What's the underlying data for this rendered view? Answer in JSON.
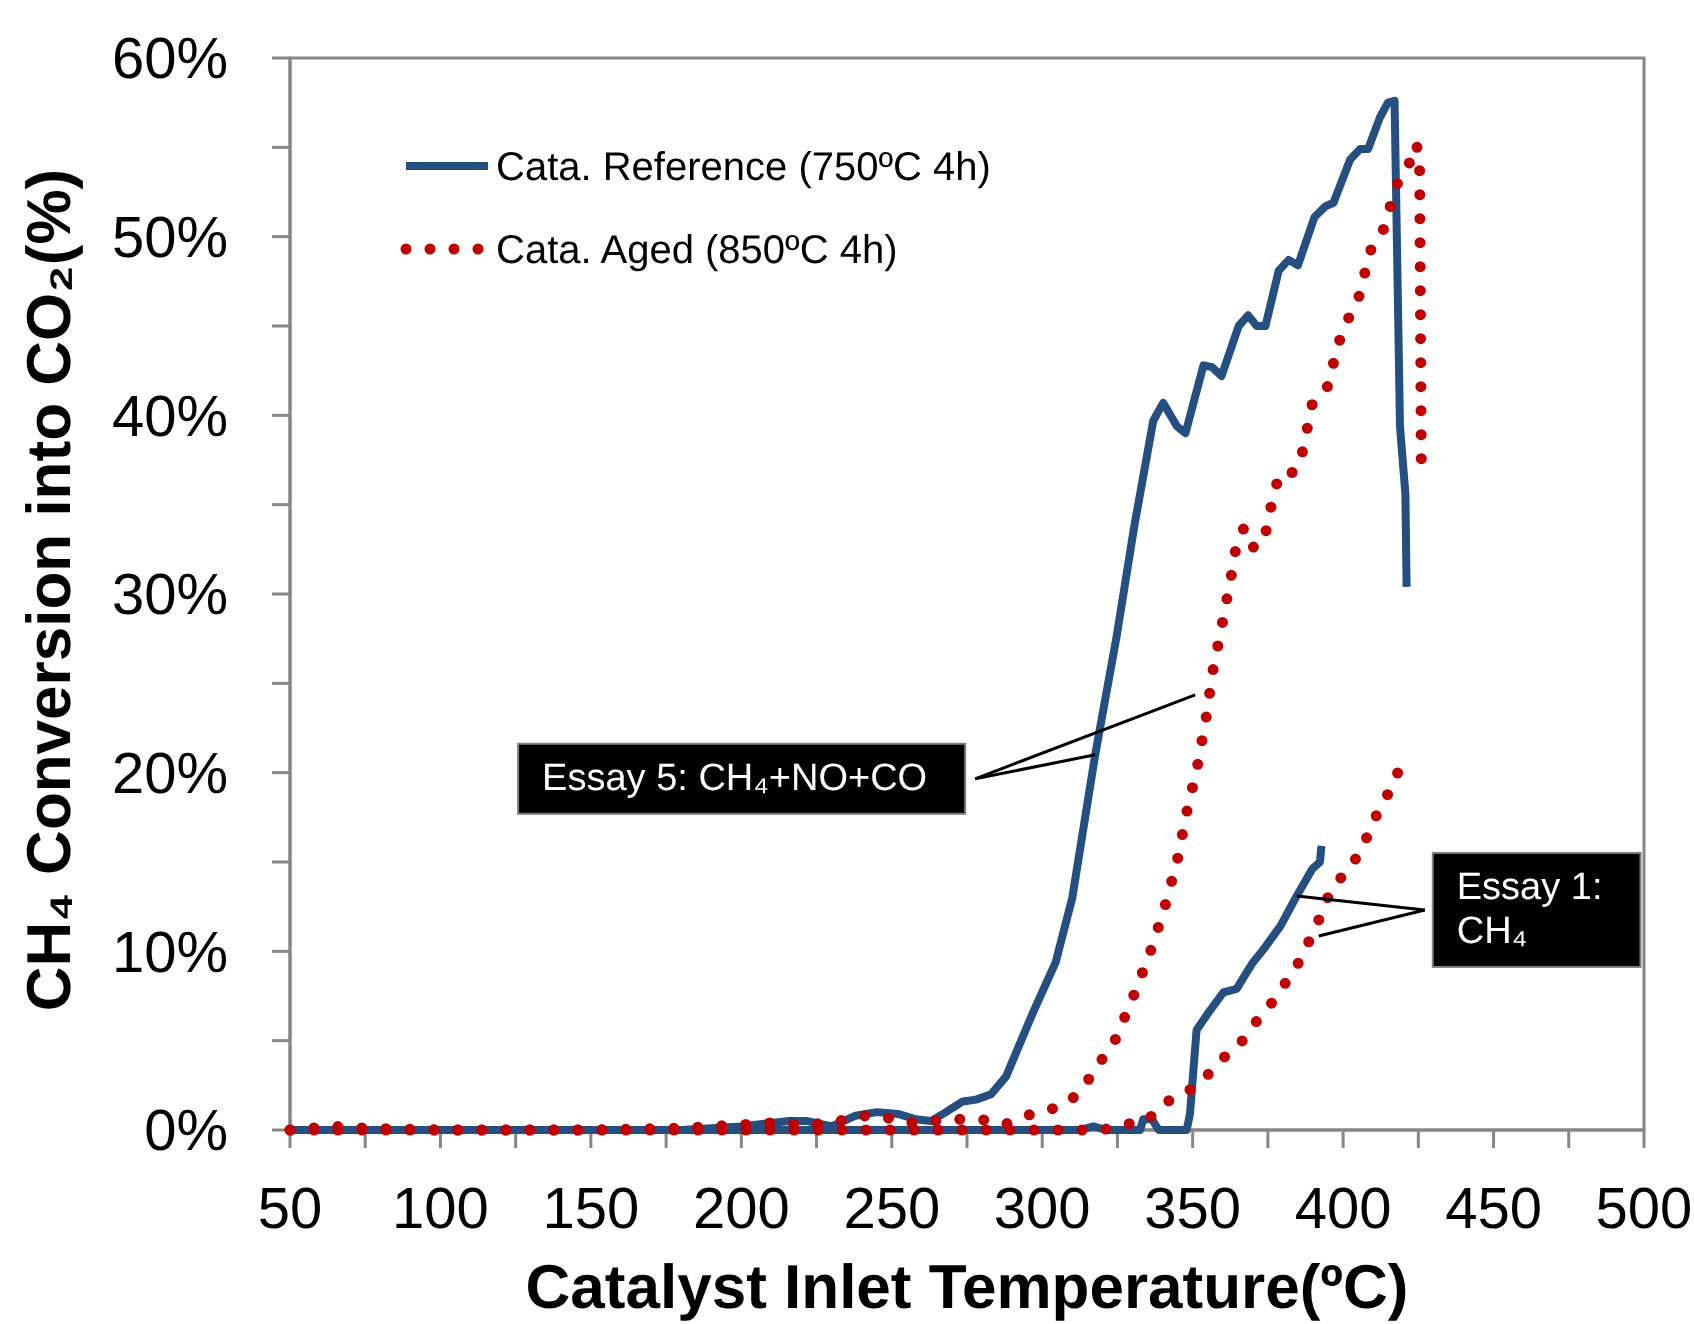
{
  "chart_data": {
    "type": "line",
    "xlabel": "Catalyst Inlet Temperature(ºC)",
    "ylabel": "CH₄ Conversion into CO₂(%)",
    "xlim": [
      50,
      500
    ],
    "xticks": [
      50,
      {
        "value": 75,
        "label": null
      },
      100,
      {
        "value": 125,
        "label": null
      },
      150,
      {
        "value": 175,
        "label": null
      },
      200,
      {
        "value": 225,
        "label": null
      },
      250,
      {
        "value": 275,
        "label": null
      },
      300,
      {
        "value": 325,
        "label": null
      },
      350,
      {
        "value": 375,
        "label": null
      },
      400,
      {
        "value": 425,
        "label": null
      },
      450,
      {
        "value": 475,
        "label": null
      },
      500
    ],
    "ylim": [
      0,
      60
    ],
    "yticks": [
      {
        "value": 0,
        "label": "0%"
      },
      {
        "value": 5,
        "label": null
      },
      {
        "value": 10,
        "label": "10%"
      },
      {
        "value": 15,
        "label": null
      },
      {
        "value": 20,
        "label": "20%"
      },
      {
        "value": 25,
        "label": null
      },
      {
        "value": 30,
        "label": "30%"
      },
      {
        "value": 35,
        "label": null
      },
      {
        "value": 40,
        "label": "40%"
      },
      {
        "value": 45,
        "label": null
      },
      {
        "value": 50,
        "label": "50%"
      },
      {
        "value": 55,
        "label": null
      },
      {
        "value": 60,
        "label": "60%"
      }
    ],
    "legend": "top left",
    "annotations": [
      {
        "text": "Essay 5: CH₄+NO+CO",
        "x": 317.6,
        "y": 21.0
      },
      {
        "text": "Essay 1:\nCH₄",
        "x": 384.6,
        "y": 13.1
      }
    ],
    "series": [
      {
        "name": "Cata. Reference (750ºC 4h)",
        "color": "#254f81",
        "line_style": "solid",
        "x": [
          50,
          100,
          150,
          180,
          200,
          210,
          216,
          222,
          230,
          238,
          245,
          252,
          258,
          263,
          268,
          273.6,
          278,
          283,
          288,
          297,
          304.5,
          310,
          317.6,
          324.7,
          330.6,
          336.9,
          340.2,
          344.7,
          347.6,
          353.6,
          356.4,
          359.6,
          365.3,
          368.4,
          371.3,
          374.2,
          378.6,
          381.9,
          385,
          390.5,
          394.1,
          396.8,
          402.3,
          405.6,
          408.3,
          412.3,
          414.9,
          417.1,
          418.9,
          420.7,
          421.1
        ],
        "values": [
          0,
          0,
          0,
          0,
          0.2,
          0.4,
          0.5,
          0.5,
          0.2,
          0.8,
          1.0,
          0.9,
          0.6,
          0.5,
          1.0,
          1.6,
          1.7,
          2.0,
          3.0,
          6.6,
          9.4,
          13.0,
          21.0,
          27.6,
          33.8,
          39.7,
          40.7,
          39.4,
          39.0,
          42.8,
          42.7,
          42.2,
          45.0,
          45.6,
          45.0,
          45.0,
          48.1,
          48.7,
          48.4,
          51.1,
          51.7,
          51.9,
          54.3,
          54.9,
          54.9,
          56.7,
          57.5,
          57.6,
          39.4,
          35.6,
          30.4
        ]
      },
      {
        "color": "#254f81",
        "line_style": "solid",
        "x": [
          50,
          150,
          250,
          312.6,
          317,
          321.4,
          332.5,
          333.6,
          336.5,
          338.7,
          348,
          349.1,
          351.3,
          355.8,
          360.2,
          364.6,
          369.7,
          373.5,
          379.1,
          384.6,
          389.7,
          392.3,
          392.8
        ],
        "values": [
          0,
          0,
          0,
          0,
          0.2,
          0,
          0,
          0.6,
          0.6,
          0,
          0,
          0.9,
          5.6,
          6.7,
          7.7,
          7.9,
          9.3,
          10.1,
          11.4,
          13.1,
          14.6,
          15.0,
          15.9
        ]
      },
      {
        "name": "Cata. Aged (850ºC 4h)",
        "color": "#c00000",
        "line_style": "dotted",
        "x": [
          50,
          57,
          65,
          75,
          100,
          150,
          180,
          200,
          210,
          220,
          230,
          240,
          248,
          255,
          263.6,
          271.3,
          279.6,
          287.4,
          294.5,
          302.1,
          309.2,
          314.5,
          319.2,
          323.9,
          330.1,
          335.8,
          340.6,
          344.9,
          347.9,
          351.5,
          354.4,
          356.7,
          359.9,
          362.8,
          364.2,
          367,
          369.7,
          373.5,
          376.8,
          379,
          383.5,
          386.4,
          389.7,
          394.6,
          398.6,
          401.7,
          405.2,
          409,
          413.2,
          417.8,
          421.6,
          424,
          425.4,
          426
        ],
        "values": [
          0,
          0.1,
          0.2,
          0.1,
          0,
          0,
          0.1,
          0.3,
          0.4,
          0.3,
          0.4,
          0.8,
          0.7,
          0.4,
          0.5,
          0.6,
          0.6,
          0.3,
          0.8,
          1.1,
          1.6,
          2.6,
          3.8,
          4.9,
          7.4,
          9.9,
          12.4,
          15.1,
          17.7,
          20.3,
          23.0,
          25.7,
          28.4,
          31.0,
          32.4,
          33.7,
          32.6,
          32.8,
          35.5,
          36.8,
          36.8,
          37.9,
          40.6,
          41.5,
          44.1,
          45.4,
          46.6,
          49.2,
          50.3,
          52.9,
          53.9,
          55.2,
          54.7,
          37.1
        ]
      },
      {
        "color": "#c00000",
        "line_style": "dotted",
        "x": [
          50,
          150,
          250,
          320,
          327,
          334.7,
          340.3,
          347,
          353.6,
          359.1,
          365.3,
          369.7,
          374.6,
          379,
          384.1,
          390.8,
          396.1,
          402.8,
          406.7,
          410.1,
          413.6,
          417.4,
          419.6
        ],
        "values": [
          0,
          0,
          0,
          0,
          0.3,
          0.5,
          1.5,
          2.0,
          2.8,
          3.9,
          4.7,
          5.8,
          6.7,
          7.8,
          9.0,
          11.3,
          13.5,
          14.8,
          15.9,
          17.3,
          18.4,
          19.6,
          20.8
        ]
      }
    ]
  }
}
